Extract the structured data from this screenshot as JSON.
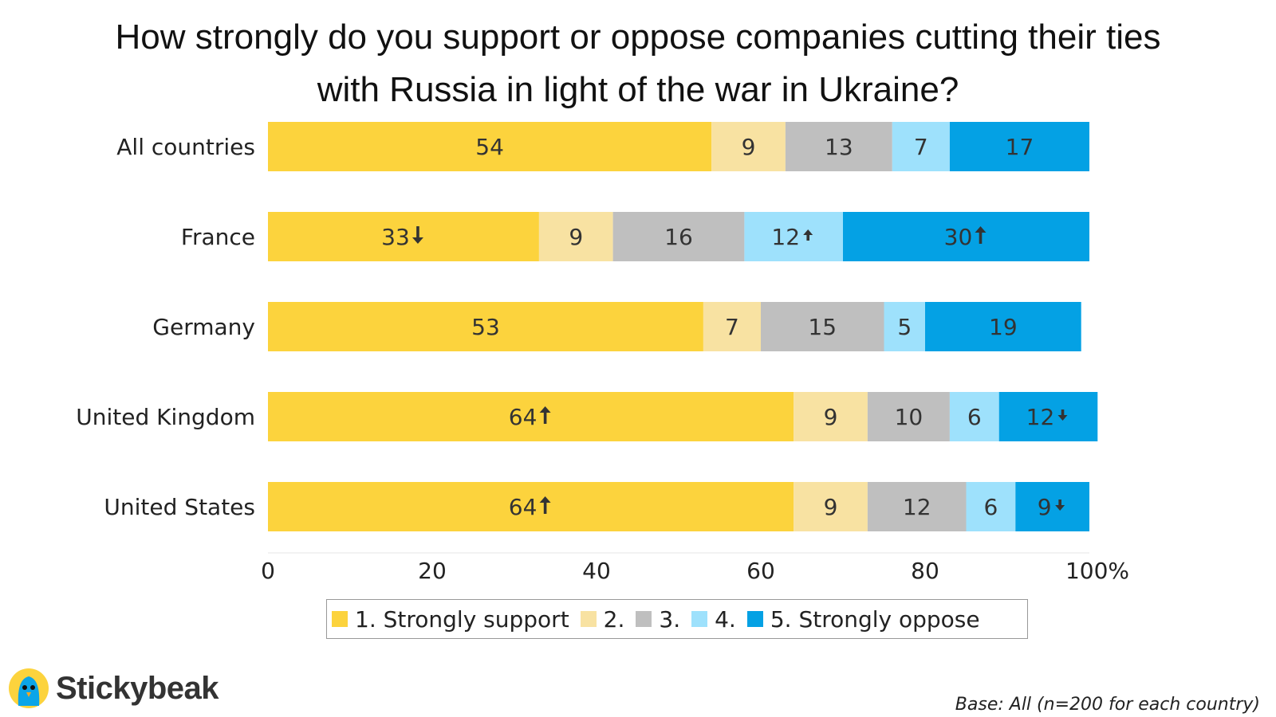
{
  "title": {
    "line1": "How strongly do you support or oppose companies cutting their ties",
    "line2": "with Russia in light of the war in Ukraine?"
  },
  "colors": {
    "1. Strongly support": "#FCD33D",
    "2.": "#F8E2A2",
    "3.": "#BFBFBF",
    "4.": "#9EE1FC",
    "5. Strongly oppose": "#04A1E4",
    "label_text": "#333333",
    "arrow": "#333333"
  },
  "chart_data": {
    "type": "bar",
    "orientation": "horizontal",
    "stacked": true,
    "categories": [
      "All countries",
      "France",
      "Germany",
      "United Kingdom",
      "United States"
    ],
    "series": [
      {
        "name": "1. Strongly support",
        "values": [
          54,
          33,
          53,
          64,
          64
        ],
        "arrows": [
          "",
          "down",
          "",
          "up",
          "up"
        ]
      },
      {
        "name": "2.",
        "values": [
          9,
          9,
          7,
          9,
          9
        ],
        "arrows": [
          "",
          "",
          "",
          "",
          ""
        ]
      },
      {
        "name": "3.",
        "values": [
          13,
          16,
          15,
          10,
          12
        ],
        "arrows": [
          "",
          "",
          "",
          "",
          ""
        ]
      },
      {
        "name": "4.",
        "values": [
          7,
          12,
          5,
          6,
          6
        ],
        "arrows": [
          "",
          "up-small",
          "",
          "",
          ""
        ]
      },
      {
        "name": "5. Strongly oppose",
        "values": [
          17,
          30,
          19,
          12,
          9
        ],
        "arrows": [
          "",
          "up",
          "",
          "down-small",
          "down-small"
        ]
      }
    ],
    "xlim": [
      0,
      100
    ],
    "xticks": [
      "0",
      "20",
      "40",
      "60",
      "80",
      "100%"
    ],
    "legend_position": "bottom"
  },
  "legend": {
    "items": [
      "1. Strongly support",
      "2.",
      "3.",
      "4.",
      "5. Strongly oppose"
    ]
  },
  "brand": {
    "name": "Stickybeak"
  },
  "footnote": "Base: All (n=200 for each country)"
}
